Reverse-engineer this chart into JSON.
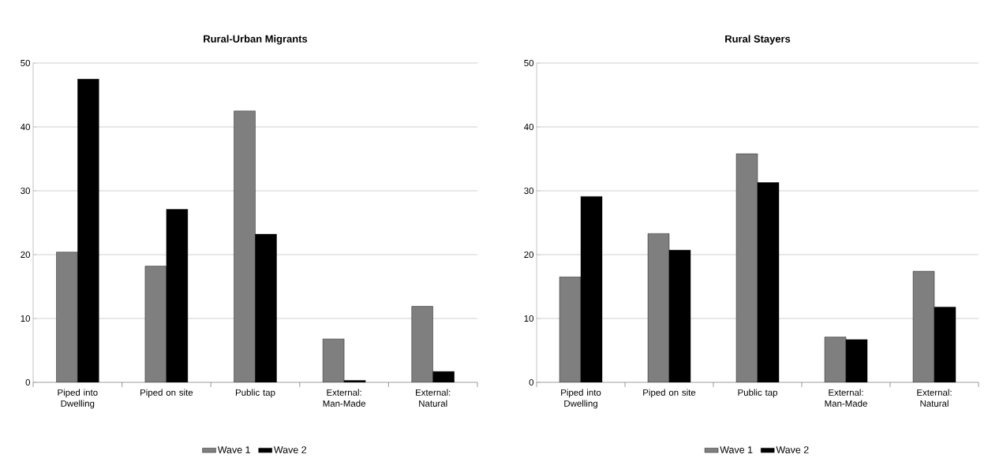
{
  "chart_data": [
    {
      "type": "bar",
      "title": "Rural-Urban Migrants",
      "categories": [
        "Piped into Dwelling",
        "Piped on site",
        "Public tap",
        "External: Man-Made",
        "External: Natural"
      ],
      "series": [
        {
          "name": "Wave 1",
          "color": "#7f7f7f",
          "values": [
            20.4,
            18.2,
            42.5,
            6.8,
            11.9
          ]
        },
        {
          "name": "Wave 2",
          "color": "#000000",
          "values": [
            47.5,
            27.1,
            23.2,
            0.3,
            1.7
          ]
        }
      ],
      "ylim": [
        0,
        50
      ],
      "yticks": [
        0,
        10,
        20,
        30,
        40,
        50
      ],
      "grid": "y",
      "legend": "bottom"
    },
    {
      "type": "bar",
      "title": "Rural Stayers",
      "categories": [
        "Piped into Dwelling",
        "Piped on site",
        "Public tap",
        "External: Man-Made",
        "External: Natural"
      ],
      "series": [
        {
          "name": "Wave 1",
          "color": "#7f7f7f",
          "values": [
            16.5,
            23.3,
            35.8,
            7.1,
            17.4
          ]
        },
        {
          "name": "Wave 2",
          "color": "#000000",
          "values": [
            29.1,
            20.7,
            31.3,
            6.7,
            11.8
          ]
        }
      ],
      "ylim": [
        0,
        50
      ],
      "yticks": [
        0,
        10,
        20,
        30,
        40,
        50
      ],
      "grid": "y",
      "legend": "bottom"
    }
  ]
}
